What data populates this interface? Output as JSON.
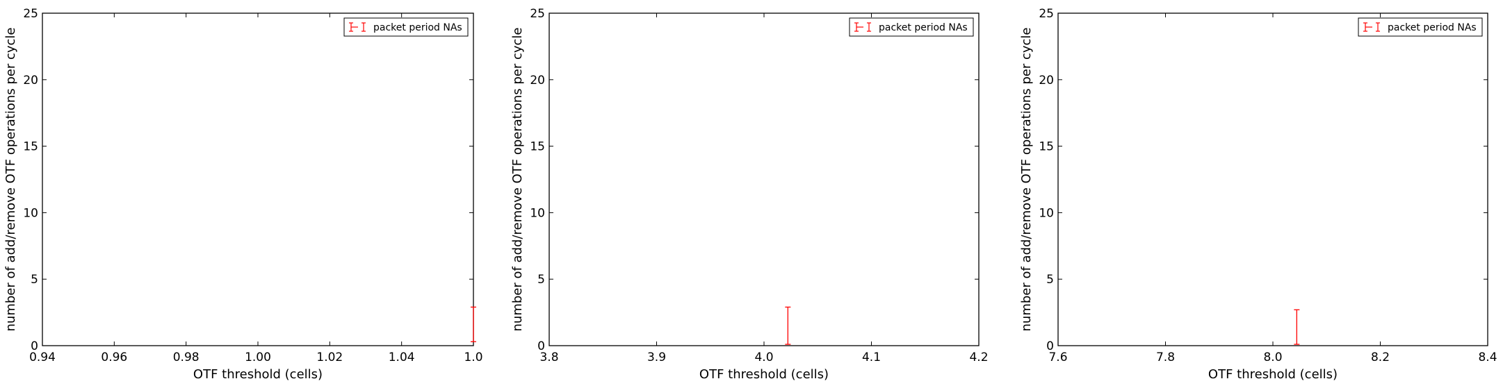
{
  "chart_data": [
    {
      "type": "errorbar",
      "xlabel": "OTF threshold (cells)",
      "ylabel": "number of add/remove OTF operations per cycle",
      "xlim": [
        0.94,
        1.0
      ],
      "ylim": [
        0,
        25
      ],
      "xticks": [
        "0.94",
        "0.96",
        "0.98",
        "1.00",
        "1.02",
        "1.04",
        "1.0"
      ],
      "yticks": [
        "0",
        "5",
        "10",
        "15",
        "20",
        "25"
      ],
      "legend_position": "top-right",
      "series": [
        {
          "name": "packet period NAs",
          "color": "#ff0000",
          "points": [
            {
              "x": 1.0,
              "y": 1.6,
              "low": 0.3,
              "high": 2.9
            }
          ]
        }
      ]
    },
    {
      "type": "errorbar",
      "xlabel": "OTF threshold (cells)",
      "ylabel": "number of add/remove OTF operations per cycle",
      "xlim": [
        3.75,
        4.2
      ],
      "ylim": [
        0,
        25
      ],
      "xticks": [
        "3.8",
        "3.9",
        "4.0",
        "4.1",
        "4.2"
      ],
      "yticks": [
        "0",
        "5",
        "10",
        "15",
        "20",
        "25"
      ],
      "legend_position": "top-right",
      "series": [
        {
          "name": "packet period NAs",
          "color": "#ff0000",
          "points": [
            {
              "x": 4.0,
              "y": 1.5,
              "low": 0.1,
              "high": 2.9
            }
          ]
        }
      ]
    },
    {
      "type": "errorbar",
      "xlabel": "OTF threshold (cells)",
      "ylabel": "number of add/remove OTF operations per cycle",
      "xlim": [
        7.5,
        8.4
      ],
      "ylim": [
        0,
        25
      ],
      "xticks": [
        "7.6",
        "7.8",
        "8.0",
        "8.2",
        "8.4"
      ],
      "yticks": [
        "0",
        "5",
        "10",
        "15",
        "20",
        "25"
      ],
      "legend_position": "top-right",
      "series": [
        {
          "name": "packet period NAs",
          "color": "#ff0000",
          "points": [
            {
              "x": 8.0,
              "y": 1.4,
              "low": 0.1,
              "high": 2.7
            }
          ]
        }
      ]
    }
  ]
}
